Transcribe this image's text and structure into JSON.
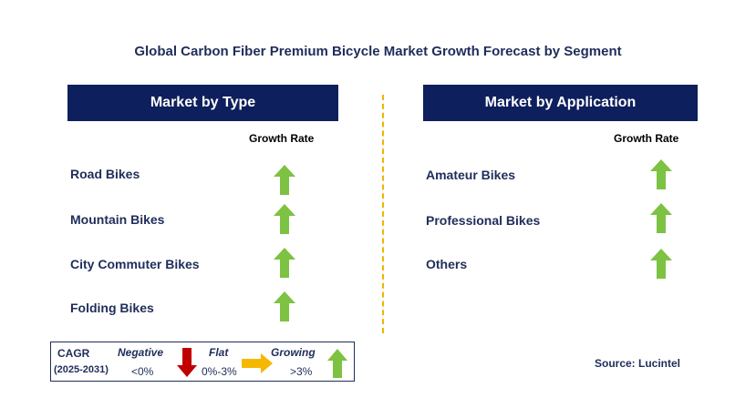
{
  "title": "Global Carbon Fiber Premium Bicycle Market Growth Forecast by Segment",
  "left_panel": {
    "header": "Market by Type",
    "growth_label": "Growth Rate",
    "items": [
      {
        "label": "Road Bikes",
        "trend": "growing"
      },
      {
        "label": "Mountain Bikes",
        "trend": "growing"
      },
      {
        "label": "City Commuter Bikes",
        "trend": "growing"
      },
      {
        "label": "Folding Bikes",
        "trend": "growing"
      }
    ]
  },
  "right_panel": {
    "header": "Market by Application",
    "growth_label": "Growth Rate",
    "items": [
      {
        "label": "Amateur Bikes",
        "trend": "growing"
      },
      {
        "label": "Professional Bikes",
        "trend": "growing"
      },
      {
        "label": "Others",
        "trend": "growing"
      }
    ]
  },
  "legend": {
    "cagr_label": "CAGR",
    "period": "(2025-2031)",
    "negative_label": "Negative",
    "negative_range": "<0%",
    "flat_label": "Flat",
    "flat_range": "0%-3%",
    "growing_label": "Growing",
    "growing_range": ">3%"
  },
  "source": "Source: Lucintel",
  "colors": {
    "header_bg": "#0d1f5c",
    "text": "#1f2d5a",
    "growing_arrow": "#7dc242",
    "negative_arrow": "#c00000",
    "flat_arrow": "#f5b800",
    "divider": "#f0b400"
  }
}
